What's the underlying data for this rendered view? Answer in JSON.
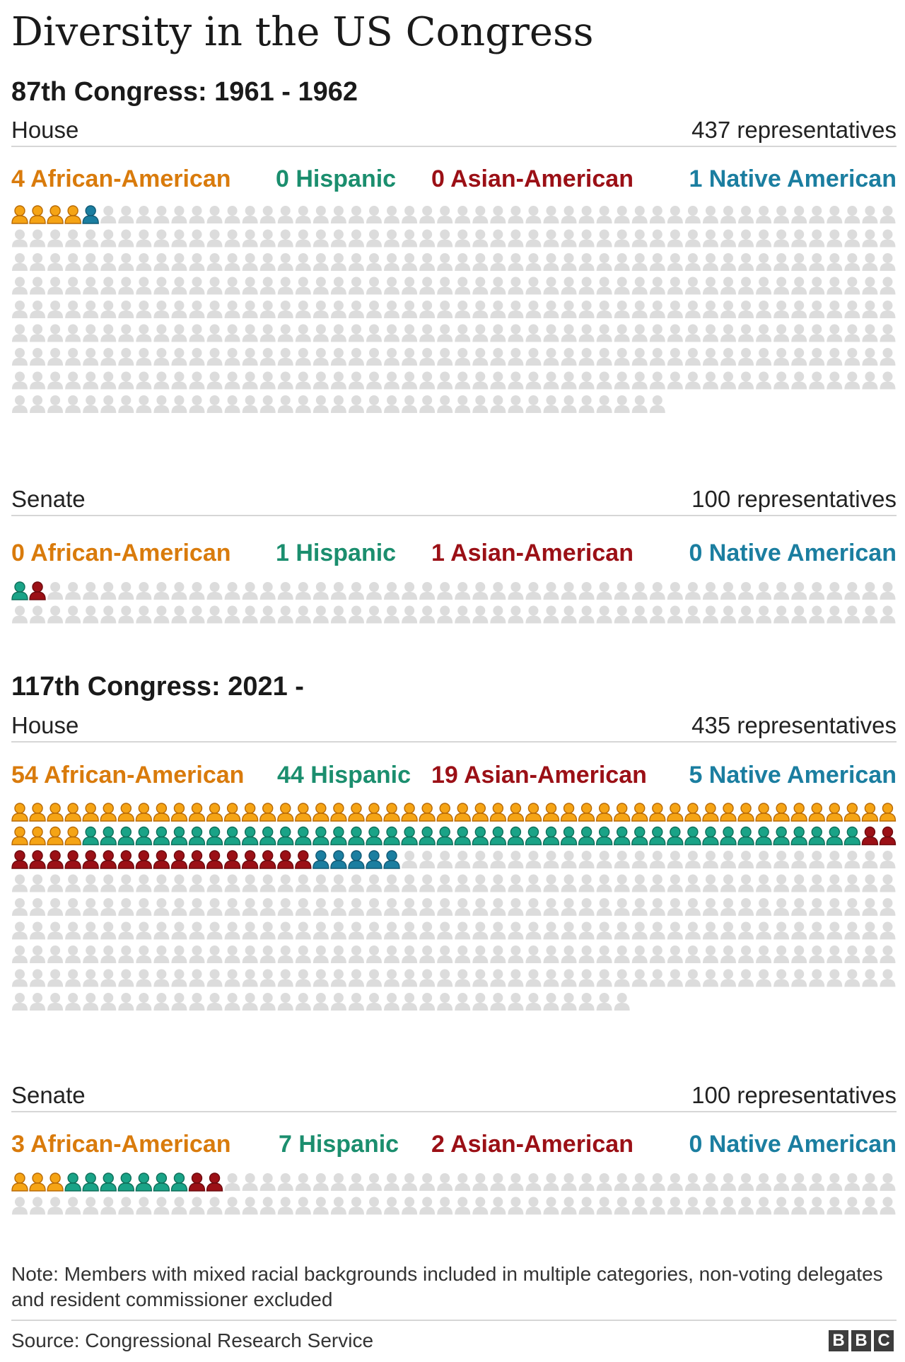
{
  "title": "Diversity in the US Congress",
  "colors": {
    "african_american": "#d97b0c",
    "african_american_icon": "#f5a415",
    "hispanic": "#1b8e6e",
    "hispanic_icon": "#1aa387",
    "asian_american": "#9b1016",
    "native_american": "#1b7ea0",
    "other": "#dcdcdc"
  },
  "sections": [
    {
      "heading": "87th Congress: 1961 - 1962",
      "chambers": [
        {
          "name": "House",
          "total_label": "437 representatives",
          "legend": [
            "4 African-American",
            "0 Hispanic",
            "0 Asian-American",
            "1 Native American"
          ]
        },
        {
          "name": "Senate",
          "total_label": "100 representatives",
          "legend": [
            "0 African-American",
            "1 Hispanic",
            "1 Asian-American",
            "0 Native American"
          ]
        }
      ]
    },
    {
      "heading": "117th Congress: 2021 -",
      "chambers": [
        {
          "name": "House",
          "total_label": "435 representatives",
          "legend": [
            "54 African-American",
            "44 Hispanic",
            "19 Asian-American",
            "5 Native American"
          ]
        },
        {
          "name": "Senate",
          "total_label": "100 representatives",
          "legend": [
            "3 African-American",
            "7 Hispanic",
            "2 Asian-American",
            "0 Native American"
          ]
        }
      ]
    }
  ],
  "chart_data": [
    {
      "type": "waffle",
      "title": "87th Congress: 1961 - 1962 — House",
      "categories": [
        "African-American",
        "Hispanic",
        "Asian-American",
        "Native American"
      ],
      "values": [
        4,
        0,
        0,
        1
      ],
      "total": 437
    },
    {
      "type": "waffle",
      "title": "87th Congress: 1961 - 1962 — Senate",
      "categories": [
        "African-American",
        "Hispanic",
        "Asian-American",
        "Native American"
      ],
      "values": [
        0,
        1,
        1,
        0
      ],
      "total": 100
    },
    {
      "type": "waffle",
      "title": "117th Congress: 2021 - — House",
      "categories": [
        "African-American",
        "Hispanic",
        "Asian-American",
        "Native American"
      ],
      "values": [
        54,
        44,
        19,
        5
      ],
      "total": 435
    },
    {
      "type": "waffle",
      "title": "117th Congress: 2021 - — Senate",
      "categories": [
        "African-American",
        "Hispanic",
        "Asian-American",
        "Native American"
      ],
      "values": [
        3,
        7,
        2,
        0
      ],
      "total": 100
    }
  ],
  "note": "Note: Members with mixed racial backgrounds included in multiple categories, non-voting delegates and resident commissioner excluded",
  "source": "Source: Congressional Research Service",
  "logo_letters": [
    "B",
    "B",
    "C"
  ]
}
